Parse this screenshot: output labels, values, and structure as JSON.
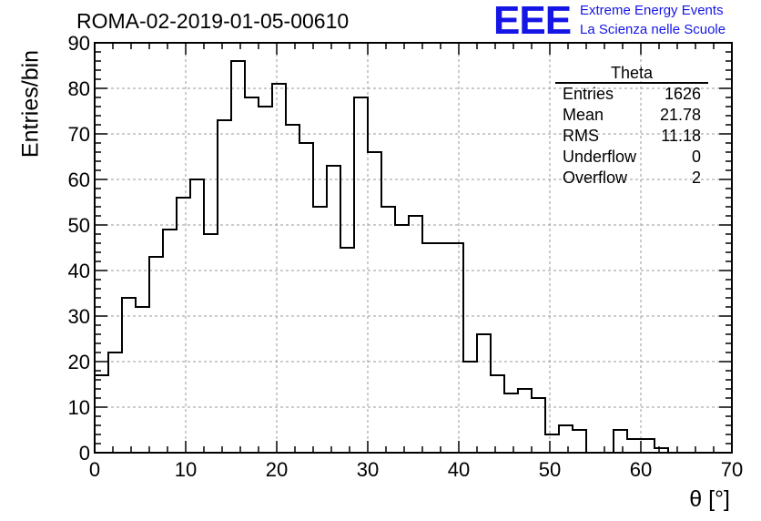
{
  "header": {
    "title": "ROMA-02-2019-01-05-00610"
  },
  "logo": {
    "mark": "EEE",
    "line1": "Extreme Energy Events",
    "line2": "La Scienza nelle Scuole",
    "color": "#1515e6"
  },
  "stats": {
    "title": "Theta",
    "rows": [
      {
        "label": "Entries",
        "value": "1626"
      },
      {
        "label": "Mean",
        "value": "21.78"
      },
      {
        "label": "RMS",
        "value": "11.18"
      },
      {
        "label": "Underflow",
        "value": "0"
      },
      {
        "label": "Overflow",
        "value": "2"
      }
    ]
  },
  "chart_data": {
    "type": "histogram",
    "title": "ROMA-02-2019-01-05-00610",
    "xlabel": "θ [°]",
    "ylabel": "Entries/bin",
    "xlim": [
      0,
      70
    ],
    "ylim": [
      0,
      90
    ],
    "xticks": [
      0,
      10,
      20,
      30,
      40,
      50,
      60,
      70
    ],
    "yticks": [
      0,
      10,
      20,
      30,
      40,
      50,
      60,
      70,
      80,
      90
    ],
    "bin_width": 1.5,
    "bin_start": 0,
    "values": [
      17,
      22,
      34,
      32,
      43,
      49,
      56,
      60,
      48,
      73,
      86,
      78,
      76,
      81,
      72,
      68,
      54,
      63,
      45,
      78,
      66,
      54,
      50,
      52,
      46,
      46,
      46,
      20,
      26,
      17,
      13,
      14,
      12,
      4,
      6,
      5,
      0,
      0,
      5,
      3,
      3,
      1,
      0,
      0,
      0,
      0
    ],
    "grid": true,
    "line_color": "#000000"
  }
}
